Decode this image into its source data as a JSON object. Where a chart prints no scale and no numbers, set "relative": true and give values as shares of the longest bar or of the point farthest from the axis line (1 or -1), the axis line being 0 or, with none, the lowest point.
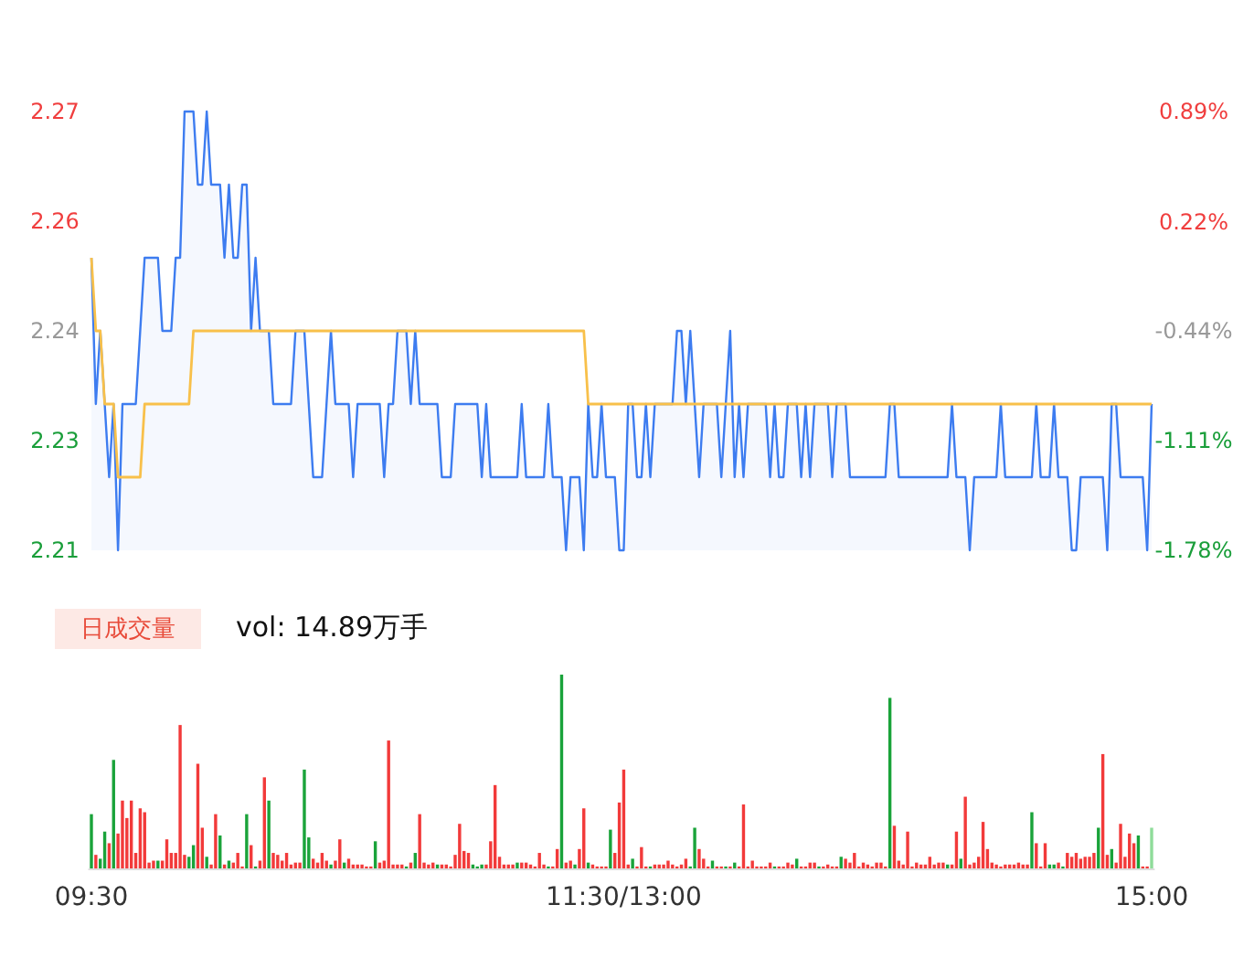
{
  "chart_data": [
    {
      "type": "line",
      "ylim": [
        2.21,
        2.27
      ],
      "yticks": [
        2.21,
        {
          "value": 2.225,
          "label": "2.23"
        },
        2.24,
        {
          "value": 2.255,
          "label": "2.26"
        },
        2.27
      ],
      "y2lim": [
        -1.78,
        0.89
      ],
      "y2ticks": [
        {
          "value": -1.78,
          "label": "-1.78%"
        },
        {
          "value": -1.11,
          "label": "-1.11%"
        },
        {
          "value": -0.44,
          "label": "-0.44%"
        },
        {
          "value": 0.22,
          "label": "0.22%"
        },
        {
          "value": 0.89,
          "label": "0.89%"
        }
      ],
      "tick_labels": "y",
      "categories": [
        null,
        null,
        null,
        null,
        null,
        null,
        null,
        null,
        null,
        null,
        null,
        null,
        null,
        null,
        null,
        null,
        null,
        null,
        null,
        null,
        null,
        null,
        null,
        null,
        null,
        null,
        null,
        null,
        null,
        null,
        null,
        null,
        null,
        null,
        null,
        null,
        null,
        null,
        null,
        null,
        null,
        null,
        null,
        null,
        null,
        null,
        null,
        null,
        null,
        null,
        null,
        null,
        null,
        null,
        null,
        null,
        null,
        null,
        null,
        null,
        null,
        null,
        null,
        null,
        null,
        null,
        null,
        null,
        null,
        null,
        null,
        null,
        null,
        null,
        null,
        null,
        null,
        null,
        null,
        null,
        null,
        null,
        null,
        null,
        null,
        null,
        null,
        null,
        null,
        null,
        null,
        null,
        null,
        null,
        null,
        null,
        null,
        null,
        null,
        null,
        null,
        null,
        null,
        null,
        null,
        null,
        null,
        null,
        null,
        null,
        null,
        null,
        null,
        null,
        null,
        null,
        null,
        null,
        null,
        null,
        null,
        null,
        null,
        null,
        null,
        null,
        null,
        null,
        null,
        null,
        null,
        null,
        null,
        null,
        null,
        null,
        null,
        null,
        null,
        null,
        null,
        null,
        null,
        null,
        null,
        null,
        null,
        null,
        null,
        null,
        null,
        null,
        null,
        null,
        null,
        null,
        null,
        null,
        null,
        null,
        null,
        null,
        null,
        null,
        null,
        null,
        null,
        null,
        null,
        null,
        null,
        null,
        null,
        null,
        null,
        null,
        null,
        null,
        null,
        null,
        null,
        null,
        null,
        null,
        null,
        null,
        null,
        null,
        null,
        null,
        null,
        null,
        null,
        null,
        null,
        null,
        null,
        null,
        null,
        null,
        null,
        null,
        null,
        null,
        null,
        null,
        null,
        null,
        null,
        null,
        null,
        null,
        null,
        null,
        null,
        null,
        null,
        null,
        null,
        null,
        null,
        null,
        null,
        null,
        null,
        null,
        null,
        null,
        null,
        null,
        null,
        null,
        null,
        null,
        null,
        null,
        null,
        null,
        null,
        null
      ],
      "series": [
        {
          "type": "area",
          "color": "#3d7cf0",
          "values": [
            2.25,
            2.23,
            2.24,
            2.23,
            2.22,
            2.23,
            2.21,
            2.23,
            2.23,
            2.23,
            2.23,
            2.24,
            2.25,
            2.25,
            2.25,
            2.25,
            2.24,
            2.24,
            2.24,
            2.25,
            2.25,
            2.27,
            2.27,
            2.27,
            2.26,
            2.26,
            2.27,
            2.26,
            2.26,
            2.26,
            2.25,
            2.26,
            2.25,
            2.25,
            2.26,
            2.26,
            2.24,
            2.25,
            2.24,
            2.24,
            2.24,
            2.23,
            2.23,
            2.23,
            2.23,
            2.23,
            2.24,
            2.24,
            2.24,
            2.23,
            2.22,
            2.22,
            2.22,
            2.23,
            2.24,
            2.23,
            2.23,
            2.23,
            2.23,
            2.22,
            2.23,
            2.23,
            2.23,
            2.23,
            2.23,
            2.23,
            2.22,
            2.23,
            2.23,
            2.24,
            2.24,
            2.24,
            2.23,
            2.24,
            2.23,
            2.23,
            2.23,
            2.23,
            2.23,
            2.22,
            2.22,
            2.22,
            2.23,
            2.23,
            2.23,
            2.23,
            2.23,
            2.23,
            2.22,
            2.23,
            2.22,
            2.22,
            2.22,
            2.22,
            2.22,
            2.22,
            2.22,
            2.23,
            2.22,
            2.22,
            2.22,
            2.22,
            2.22,
            2.23,
            2.22,
            2.22,
            2.22,
            2.21,
            2.22,
            2.22,
            2.22,
            2.21,
            2.23,
            2.22,
            2.22,
            2.23,
            2.22,
            2.22,
            2.22,
            2.21,
            2.21,
            2.23,
            2.23,
            2.22,
            2.22,
            2.23,
            2.22,
            2.23,
            2.23,
            2.23,
            2.23,
            2.23,
            2.24,
            2.24,
            2.23,
            2.24,
            2.23,
            2.22,
            2.23,
            2.23,
            2.23,
            2.23,
            2.22,
            2.23,
            2.24,
            2.22,
            2.23,
            2.22,
            2.23,
            2.23,
            2.23,
            2.23,
            2.23,
            2.22,
            2.23,
            2.22,
            2.22,
            2.23,
            2.23,
            2.23,
            2.22,
            2.23,
            2.22,
            2.23,
            2.23,
            2.23,
            2.23,
            2.22,
            2.23,
            2.23,
            2.23,
            2.22,
            2.22,
            2.22,
            2.22,
            2.22,
            2.22,
            2.22,
            2.22,
            2.22,
            2.23,
            2.23,
            2.22,
            2.22,
            2.22,
            2.22,
            2.22,
            2.22,
            2.22,
            2.22,
            2.22,
            2.22,
            2.22,
            2.22,
            2.23,
            2.22,
            2.22,
            2.22,
            2.21,
            2.22,
            2.22,
            2.22,
            2.22,
            2.22,
            2.22,
            2.23,
            2.22,
            2.22,
            2.22,
            2.22,
            2.22,
            2.22,
            2.22,
            2.23,
            2.22,
            2.22,
            2.22,
            2.23,
            2.22,
            2.22,
            2.22,
            2.21,
            2.21,
            2.22,
            2.22,
            2.22,
            2.22,
            2.22,
            2.22,
            2.21,
            2.23,
            2.23,
            2.22,
            2.22,
            2.22,
            2.22,
            2.22,
            2.22,
            2.21,
            2.23
          ]
        },
        {
          "type": "line",
          "color": "#f8c04a",
          "values": [
            2.25,
            2.24,
            2.24,
            2.23,
            2.23,
            2.23,
            2.22,
            2.22,
            2.22,
            2.22,
            2.22,
            2.22,
            2.23,
            2.23,
            2.23,
            2.23,
            2.23,
            2.23,
            2.23,
            2.23,
            2.23,
            2.23,
            2.23,
            2.24,
            2.24,
            2.24,
            2.24,
            2.24,
            2.24,
            2.24,
            2.24,
            2.24,
            2.24,
            2.24,
            2.24,
            2.24,
            2.24,
            2.24,
            2.24,
            2.24,
            2.24,
            2.24,
            2.24,
            2.24,
            2.24,
            2.24,
            2.24,
            2.24,
            2.24,
            2.24,
            2.24,
            2.24,
            2.24,
            2.24,
            2.24,
            2.24,
            2.24,
            2.24,
            2.24,
            2.24,
            2.24,
            2.24,
            2.24,
            2.24,
            2.24,
            2.24,
            2.24,
            2.24,
            2.24,
            2.24,
            2.24,
            2.24,
            2.24,
            2.24,
            2.24,
            2.24,
            2.24,
            2.24,
            2.24,
            2.24,
            2.24,
            2.24,
            2.24,
            2.24,
            2.24,
            2.24,
            2.24,
            2.24,
            2.24,
            2.24,
            2.24,
            2.24,
            2.24,
            2.24,
            2.24,
            2.24,
            2.24,
            2.24,
            2.24,
            2.24,
            2.24,
            2.24,
            2.24,
            2.24,
            2.24,
            2.24,
            2.24,
            2.24,
            2.24,
            2.24,
            2.24,
            2.24,
            2.23,
            2.23,
            2.23,
            2.23,
            2.23,
            2.23,
            2.23,
            2.23,
            2.23,
            2.23,
            2.23,
            2.23,
            2.23,
            2.23,
            2.23,
            2.23,
            2.23,
            2.23,
            2.23,
            2.23,
            2.23,
            2.23,
            2.23,
            2.23,
            2.23,
            2.23,
            2.23,
            2.23,
            2.23,
            2.23,
            2.23,
            2.23,
            2.23,
            2.23,
            2.23,
            2.23,
            2.23,
            2.23,
            2.23,
            2.23,
            2.23,
            2.23,
            2.23,
            2.23,
            2.23,
            2.23,
            2.23,
            2.23,
            2.23,
            2.23,
            2.23,
            2.23,
            2.23,
            2.23,
            2.23,
            2.23,
            2.23,
            2.23,
            2.23,
            2.23,
            2.23,
            2.23,
            2.23,
            2.23,
            2.23,
            2.23,
            2.23,
            2.23,
            2.23,
            2.23,
            2.23,
            2.23,
            2.23,
            2.23,
            2.23,
            2.23,
            2.23,
            2.23,
            2.23,
            2.23,
            2.23,
            2.23,
            2.23,
            2.23,
            2.23,
            2.23,
            2.23,
            2.23,
            2.23,
            2.23,
            2.23,
            2.23,
            2.23,
            2.23,
            2.23,
            2.23,
            2.23,
            2.23,
            2.23,
            2.23,
            2.23,
            2.23,
            2.23,
            2.23,
            2.23,
            2.23,
            2.23,
            2.23,
            2.23,
            2.23,
            2.23,
            2.23,
            2.23,
            2.23,
            2.23,
            2.23,
            2.23,
            2.23,
            2.23,
            2.23,
            2.23,
            2.23,
            2.23,
            2.23,
            2.23,
            2.23,
            2.23,
            2.23
          ]
        }
      ]
    },
    {
      "type": "bar",
      "relative": true,
      "tick_labels": "x",
      "annotations": [
        "日成交量",
        "vol: 14.89万手"
      ],
      "categories": [
        "09:30",
        null,
        null,
        null,
        null,
        null,
        null,
        null,
        null,
        null,
        null,
        null,
        null,
        null,
        null,
        null,
        null,
        null,
        null,
        null,
        null,
        null,
        null,
        null,
        null,
        null,
        null,
        null,
        null,
        null,
        null,
        null,
        null,
        null,
        null,
        null,
        null,
        null,
        null,
        null,
        null,
        null,
        null,
        null,
        null,
        null,
        null,
        null,
        null,
        null,
        null,
        null,
        null,
        null,
        null,
        null,
        null,
        null,
        null,
        null,
        null,
        null,
        null,
        null,
        null,
        null,
        null,
        null,
        null,
        null,
        null,
        null,
        null,
        null,
        null,
        null,
        null,
        null,
        null,
        null,
        null,
        null,
        null,
        null,
        null,
        null,
        null,
        null,
        null,
        null,
        null,
        null,
        null,
        null,
        null,
        null,
        null,
        null,
        null,
        null,
        null,
        null,
        null,
        null,
        null,
        null,
        null,
        null,
        null,
        null,
        null,
        null,
        null,
        null,
        null,
        null,
        null,
        null,
        null,
        null,
        "11:30/13:00",
        null,
        null,
        null,
        null,
        null,
        null,
        null,
        null,
        null,
        null,
        null,
        null,
        null,
        null,
        null,
        null,
        null,
        null,
        null,
        null,
        null,
        null,
        null,
        null,
        null,
        null,
        null,
        null,
        null,
        null,
        null,
        null,
        null,
        null,
        null,
        null,
        null,
        null,
        null,
        null,
        null,
        null,
        null,
        null,
        null,
        null,
        null,
        null,
        null,
        null,
        null,
        null,
        null,
        null,
        null,
        null,
        null,
        null,
        null,
        null,
        null,
        null,
        null,
        null,
        null,
        null,
        null,
        null,
        null,
        null,
        null,
        null,
        null,
        null,
        null,
        null,
        null,
        null,
        null,
        null,
        null,
        null,
        null,
        null,
        null,
        null,
        null,
        null,
        null,
        null,
        null,
        null,
        null,
        null,
        null,
        null,
        null,
        null,
        null,
        null,
        null,
        null,
        null,
        null,
        null,
        null,
        null,
        null,
        null,
        null,
        null,
        null,
        null,
        null,
        null,
        null,
        null,
        null,
        "15:00"
      ],
      "values": [
        0.28,
        0.07,
        0.05,
        0.19,
        0.13,
        0.56,
        0.18,
        0.35,
        0.26,
        0.35,
        0.08,
        0.31,
        0.29,
        0.03,
        0.04,
        0.04,
        0.04,
        0.15,
        0.08,
        0.08,
        0.74,
        0.07,
        0.06,
        0.12,
        0.54,
        0.21,
        0.06,
        0.02,
        0.28,
        0.17,
        0.02,
        0.04,
        0.03,
        0.08,
        0.01,
        0.28,
        0.12,
        0.01,
        0.04,
        0.47,
        0.35,
        0.08,
        0.07,
        0.04,
        0.08,
        0.02,
        0.03,
        0.03,
        0.51,
        0.16,
        0.05,
        0.03,
        0.08,
        0.04,
        0.02,
        0.04,
        0.15,
        0.03,
        0.05,
        0.02,
        0.02,
        0.02,
        0.01,
        0.01,
        0.14,
        0.03,
        0.04,
        0.66,
        0.02,
        0.02,
        0.02,
        0.01,
        0.03,
        0.08,
        0.28,
        0.03,
        0.02,
        0.03,
        0.02,
        0.02,
        0.02,
        0.01,
        0.07,
        0.23,
        0.09,
        0.08,
        0.02,
        0.01,
        0.02,
        0.02,
        0.14,
        0.43,
        0.06,
        0.02,
        0.02,
        0.02,
        0.03,
        0.03,
        0.03,
        0.02,
        0.01,
        0.08,
        0.02,
        0.01,
        0.01,
        0.1,
        1,
        0.03,
        0.04,
        0.02,
        0.1,
        0.31,
        0.03,
        0.02,
        0.01,
        0.01,
        0.01,
        0.2,
        0.08,
        0.34,
        0.51,
        0.02,
        0.05,
        0.01,
        0.11,
        0.01,
        0.01,
        0.02,
        0.02,
        0.02,
        0.04,
        0.02,
        0.01,
        0.02,
        0.05,
        0.01,
        0.21,
        0.1,
        0.05,
        0.01,
        0.04,
        0.01,
        0.01,
        0.01,
        0.01,
        0.03,
        0.01,
        0.33,
        0.01,
        0.04,
        0.01,
        0.01,
        0.01,
        0.03,
        0.01,
        0.01,
        0.01,
        0.03,
        0.02,
        0.05,
        0.01,
        0.01,
        0.03,
        0.03,
        0.01,
        0.01,
        0.02,
        0.01,
        0.01,
        0.06,
        0.05,
        0.03,
        0.08,
        0.01,
        0.03,
        0.02,
        0.01,
        0.03,
        0.03,
        0.01,
        0.88,
        0.22,
        0.04,
        0.02,
        0.19,
        0.01,
        0.03,
        0.02,
        0.02,
        0.06,
        0.02,
        0.03,
        0.03,
        0.02,
        0.02,
        0.19,
        0.05,
        0.37,
        0.02,
        0.03,
        0.06,
        0.24,
        0.1,
        0.03,
        0.02,
        0.01,
        0.02,
        0.02,
        0.02,
        0.03,
        0.02,
        0.02,
        0.29,
        0.13,
        0.01,
        0.13,
        0.02,
        0.02,
        0.03,
        0.01,
        0.08,
        0.06,
        0.08,
        0.05,
        0.06,
        0.06,
        0.08,
        0.21,
        0.59,
        0.07,
        0.1,
        0.03,
        0.23,
        0.06,
        0.18,
        0.13,
        0.17,
        0.01,
        0.01,
        0.21
      ],
      "colors": [
        "#1aa33a",
        "#f23a3a",
        "#1aa33a",
        "#1aa33a",
        "#f23a3a",
        "#1aa33a",
        "#f23a3a",
        "#f23a3a",
        "#f23a3a",
        "#f23a3a",
        "#f23a3a",
        "#f23a3a",
        "#f23a3a",
        "#f23a3a",
        "#f23a3a",
        "#1aa33a",
        "#f23a3a",
        "#f23a3a",
        "#f23a3a",
        "#f23a3a",
        "#f23a3a",
        "#f23a3a",
        "#1aa33a",
        "#1aa33a",
        "#f23a3a",
        "#f23a3a",
        "#1aa33a",
        "#f23a3a",
        "#f23a3a",
        "#1aa33a",
        "#f23a3a",
        "#1aa33a",
        "#f23a3a",
        "#f23a3a",
        "#f23a3a",
        "#1aa33a",
        "#f23a3a",
        "#1aa33a",
        "#f23a3a",
        "#f23a3a",
        "#1aa33a",
        "#f23a3a",
        "#f23a3a",
        "#f23a3a",
        "#f23a3a",
        "#f23a3a",
        "#f23a3a",
        "#f23a3a",
        "#1aa33a",
        "#1aa33a",
        "#f23a3a",
        "#f23a3a",
        "#f23a3a",
        "#f23a3a",
        "#1aa33a",
        "#f23a3a",
        "#f23a3a",
        "#1aa33a",
        "#f23a3a",
        "#f23a3a",
        "#f23a3a",
        "#f23a3a",
        "#f23a3a",
        "#f23a3a",
        "#1aa33a",
        "#f23a3a",
        "#f23a3a",
        "#f23a3a",
        "#f23a3a",
        "#f23a3a",
        "#f23a3a",
        "#1aa33a",
        "#f23a3a",
        "#1aa33a",
        "#f23a3a",
        "#f23a3a",
        "#f23a3a",
        "#f23a3a",
        "#1aa33a",
        "#f23a3a",
        "#f23a3a",
        "#f23a3a",
        "#f23a3a",
        "#f23a3a",
        "#f23a3a",
        "#f23a3a",
        "#1aa33a",
        "#1aa33a",
        "#1aa33a",
        "#f23a3a",
        "#f23a3a",
        "#f23a3a",
        "#f23a3a",
        "#f23a3a",
        "#f23a3a",
        "#f23a3a",
        "#1aa33a",
        "#f23a3a",
        "#f23a3a",
        "#f23a3a",
        "#f23a3a",
        "#f23a3a",
        "#f23a3a",
        "#1aa33a",
        "#f23a3a",
        "#f23a3a",
        "#1aa33a",
        "#f23a3a",
        "#f23a3a",
        "#1aa33a",
        "#f23a3a",
        "#f23a3a",
        "#1aa33a",
        "#f23a3a",
        "#f23a3a",
        "#f23a3a",
        "#f23a3a",
        "#1aa33a",
        "#f23a3a",
        "#f23a3a",
        "#f23a3a",
        "#f23a3a",
        "#1aa33a",
        "#f23a3a",
        "#f23a3a",
        "#f23a3a",
        "#1aa33a",
        "#f23a3a",
        "#f23a3a",
        "#f23a3a",
        "#f23a3a",
        "#f23a3a",
        "#f23a3a",
        "#f23a3a",
        "#f23a3a",
        "#1aa33a",
        "#1aa33a",
        "#f23a3a",
        "#f23a3a",
        "#f23a3a",
        "#1aa33a",
        "#f23a3a",
        "#f23a3a",
        "#1aa33a",
        "#f23a3a",
        "#1aa33a",
        "#f23a3a",
        "#f23a3a",
        "#f23a3a",
        "#f23a3a",
        "#f23a3a",
        "#f23a3a",
        "#f23a3a",
        "#f23a3a",
        "#1aa33a",
        "#f23a3a",
        "#f23a3a",
        "#f23a3a",
        "#f23a3a",
        "#1aa33a",
        "#f23a3a",
        "#f23a3a",
        "#f23a3a",
        "#f23a3a",
        "#1aa33a",
        "#f23a3a",
        "#f23a3a",
        "#f23a3a",
        "#f23a3a",
        "#1aa33a",
        "#f23a3a",
        "#f23a3a",
        "#f23a3a",
        "#f23a3a",
        "#f23a3a",
        "#f23a3a",
        "#f23a3a",
        "#f23a3a",
        "#f23a3a",
        "#f23a3a",
        "#1aa33a",
        "#f23a3a",
        "#f23a3a",
        "#f23a3a",
        "#f23a3a",
        "#f23a3a",
        "#f23a3a",
        "#f23a3a",
        "#f23a3a",
        "#f23a3a",
        "#f23a3a",
        "#f23a3a",
        "#f23a3a",
        "#1aa33a",
        "#f23a3a",
        "#f23a3a",
        "#1aa33a",
        "#f23a3a",
        "#f23a3a",
        "#f23a3a",
        "#f23a3a",
        "#f23a3a",
        "#f23a3a",
        "#f23a3a",
        "#f23a3a",
        "#f23a3a",
        "#f23a3a",
        "#f23a3a",
        "#f23a3a",
        "#f23a3a",
        "#f23a3a",
        "#f23a3a",
        "#1aa33a",
        "#f23a3a",
        "#f23a3a",
        "#f23a3a",
        "#1aa33a",
        "#1aa33a",
        "#f23a3a",
        "#1aa33a",
        "#f23a3a",
        "#f23a3a",
        "#f23a3a",
        "#f23a3a",
        "#f23a3a",
        "#f23a3a",
        "#f23a3a",
        "#1aa33a",
        "#f23a3a",
        "#f23a3a",
        "#1aa33a",
        "#f23a3a",
        "#f23a3a",
        "#f23a3a",
        "#f23a3a",
        "#f23a3a",
        "#1aa33a",
        "#f23a3a",
        "#f23a3a",
        "#8fdc9a"
      ]
    }
  ]
}
